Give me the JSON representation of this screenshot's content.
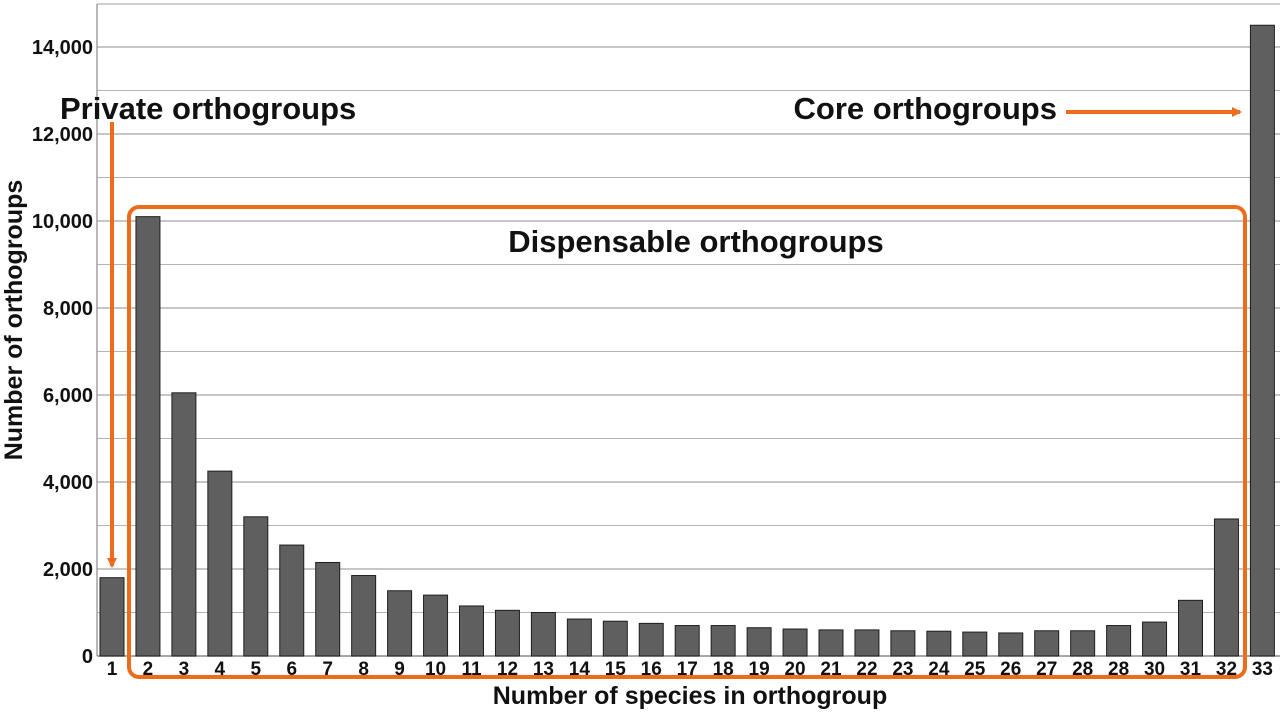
{
  "chart_data": {
    "type": "bar",
    "xlabel": "Number of species in orthogroup",
    "ylabel": "Number of orthogroups",
    "ylim": [
      0,
      14000
    ],
    "yticks": [
      "0",
      "2,000",
      "4,000",
      "6,000",
      "8,000",
      "10,000",
      "12,000",
      "14,000"
    ],
    "grid": true,
    "categories": [
      "1",
      "2",
      "3",
      "4",
      "5",
      "6",
      "7",
      "8",
      "9",
      "10",
      "11",
      "12",
      "13",
      "14",
      "15",
      "16",
      "17",
      "18",
      "19",
      "20",
      "21",
      "22",
      "23",
      "24",
      "25",
      "26",
      "27",
      "28",
      "28",
      "30",
      "31",
      "32",
      "33"
    ],
    "values": [
      1800,
      10100,
      6050,
      4250,
      3200,
      2550,
      2150,
      1850,
      1500,
      1400,
      1150,
      1050,
      1000,
      850,
      800,
      750,
      700,
      700,
      650,
      620,
      600,
      600,
      580,
      570,
      550,
      530,
      580,
      580,
      700,
      780,
      1280,
      3150,
      14500
    ],
    "annotations": {
      "private": "Private orthogroups",
      "dispensable": "Dispensable orthogroups",
      "core": "Core orthogroups"
    },
    "colors": {
      "bar": "#5f5f5f",
      "bar_stroke": "#1e1e1e",
      "grid": "#b4b4b4",
      "accent": "#ec6c1c"
    }
  }
}
